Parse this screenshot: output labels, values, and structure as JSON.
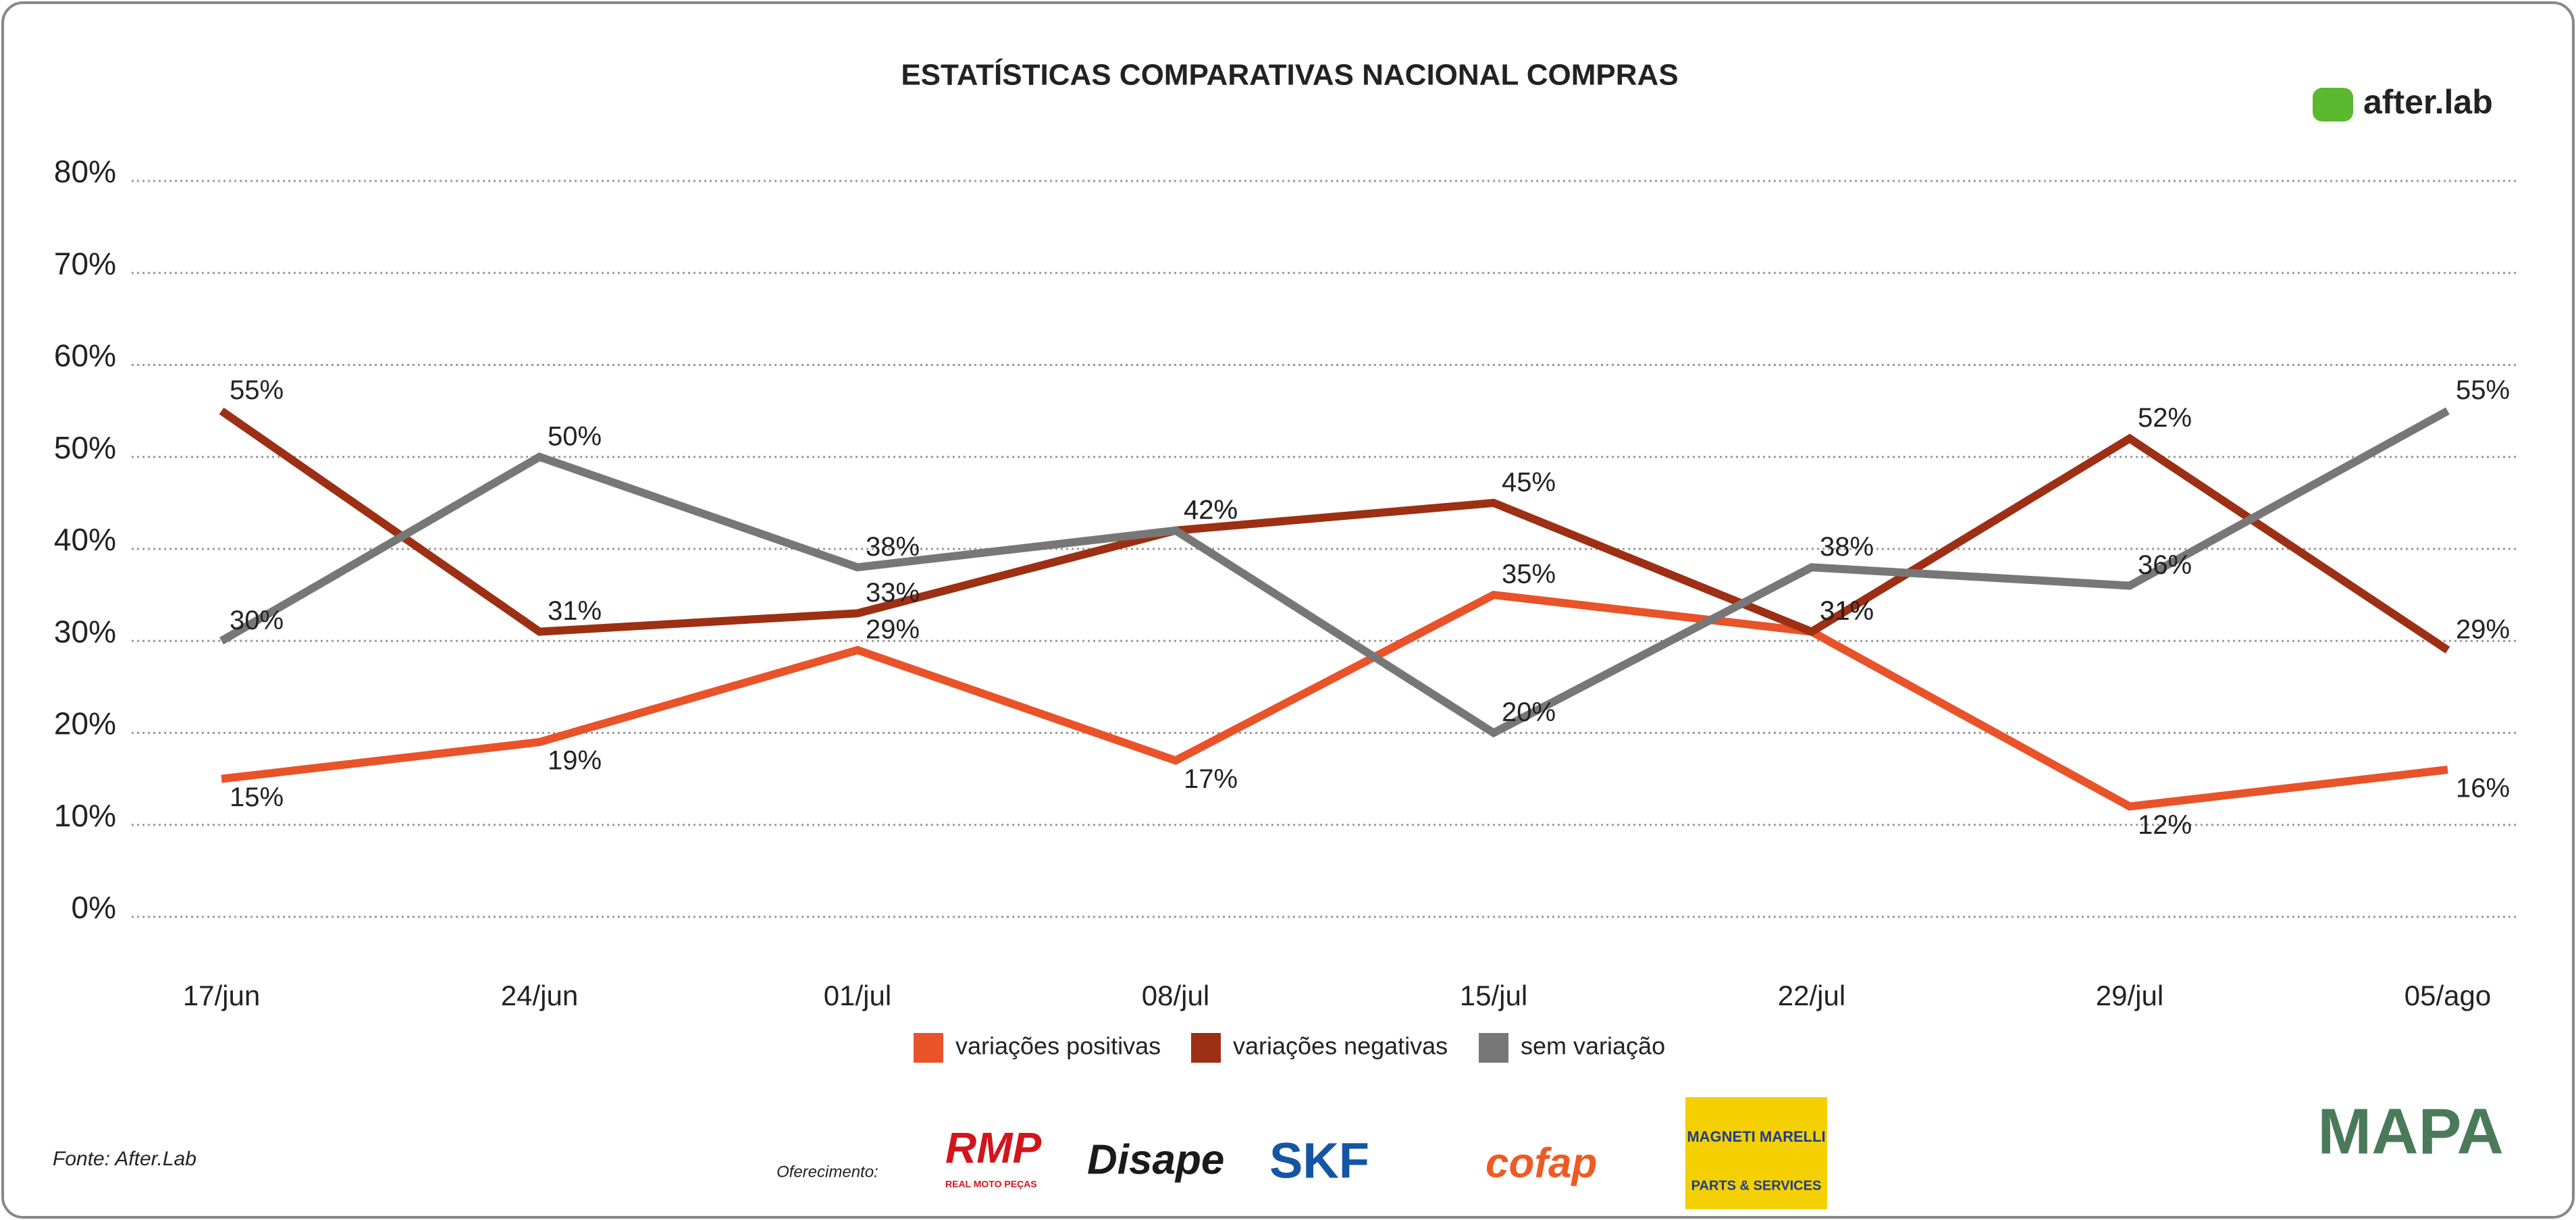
{
  "chart_data": {
    "type": "line",
    "title": "ESTATÍSTICAS COMPARATIVAS NACIONAL COMPRAS",
    "categories": [
      "17/jun",
      "24/jun",
      "01/jul",
      "08/jul",
      "15/jul",
      "22/jul",
      "29/jul",
      "05/ago"
    ],
    "series": [
      {
        "name": "variações positivas",
        "color": "#e8532a",
        "values": [
          15,
          19,
          29,
          17,
          35,
          31,
          12,
          16
        ],
        "value_labels": [
          "15%",
          "19%",
          "29%",
          "17%",
          "35%",
          "31%",
          "12%",
          "16%"
        ]
      },
      {
        "name": "variações negativas",
        "color": "#9c2f14",
        "values": [
          55,
          31,
          33,
          42,
          45,
          31,
          52,
          29
        ],
        "value_labels": [
          "55%",
          "31%",
          "33%",
          "42%",
          "45%",
          "31%",
          "52%",
          "29%"
        ]
      },
      {
        "name": "sem variação",
        "color": "#777777",
        "values": [
          30,
          50,
          38,
          42,
          20,
          38,
          36,
          55
        ],
        "value_labels": [
          "30%",
          "50%",
          "38%",
          "42%",
          "20%",
          "38%",
          "36%",
          "55%"
        ]
      }
    ],
    "ylim": [
      0,
      80
    ],
    "yticks": [
      {
        "value": 0,
        "label": "0%"
      },
      {
        "value": 10,
        "label": "10%"
      },
      {
        "value": 20,
        "label": "20%"
      },
      {
        "value": 30,
        "label": "30%"
      },
      {
        "value": 40,
        "label": "40%"
      },
      {
        "value": 50,
        "label": "50%"
      },
      {
        "value": 60,
        "label": "60%"
      },
      {
        "value": 70,
        "label": "70%"
      },
      {
        "value": 80,
        "label": "80%"
      }
    ],
    "grid": true,
    "legend": "bottom"
  },
  "branding": {
    "logo": "after.lab",
    "source": "Fonte: After.Lab",
    "sponsor_label": "Oferecimento:",
    "sponsors": [
      "RMP",
      "REAL MOTO PEÇAS",
      "Disape",
      "SKF",
      "cofap",
      "MAGNETI MARELLI",
      "PARTS & SERVICES",
      "MAPA"
    ]
  }
}
